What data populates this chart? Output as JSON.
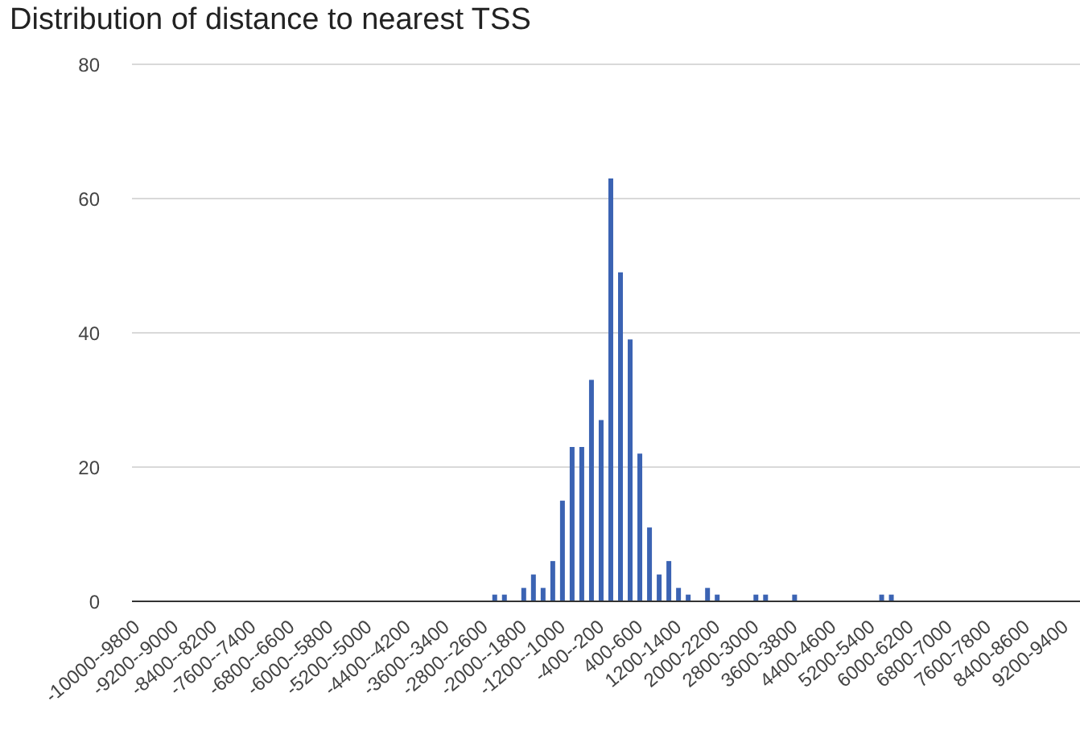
{
  "chart_data": {
    "type": "bar",
    "title": "Distribution of distance to nearest TSS",
    "categories": [
      "-10000--9800",
      null,
      null,
      null,
      "-9200--9000",
      null,
      null,
      null,
      "-8400--8200",
      null,
      null,
      null,
      "-7600--7400",
      null,
      null,
      null,
      "-6800--6600",
      null,
      null,
      null,
      "-6000--5800",
      null,
      null,
      null,
      "-5200--5000",
      null,
      null,
      null,
      "-4400--4200",
      null,
      null,
      null,
      "-3600--3400",
      null,
      null,
      null,
      "-2800--2600",
      null,
      null,
      null,
      "-2000--1800",
      null,
      null,
      null,
      "-1200--1000",
      null,
      null,
      null,
      "-400--200",
      null,
      null,
      null,
      "400-600",
      null,
      null,
      null,
      "1200-1400",
      null,
      null,
      null,
      "2000-2200",
      null,
      null,
      null,
      "2800-3000",
      null,
      null,
      null,
      "3600-3800",
      null,
      null,
      null,
      "4400-4600",
      null,
      null,
      null,
      "5200-5400",
      null,
      null,
      null,
      "6000-6200",
      null,
      null,
      null,
      "6800-7000",
      null,
      null,
      null,
      "7600-7800",
      null,
      null,
      null,
      "8400-8600",
      null,
      null,
      null,
      "9200-9400",
      null,
      null,
      null
    ],
    "values": [
      0,
      0,
      0,
      0,
      0,
      0,
      0,
      0,
      0,
      0,
      0,
      0,
      0,
      0,
      0,
      0,
      0,
      0,
      0,
      0,
      0,
      0,
      0,
      0,
      0,
      0,
      0,
      0,
      0,
      0,
      0,
      0,
      0,
      0,
      0,
      0,
      0,
      1,
      1,
      0,
      2,
      4,
      2,
      6,
      15,
      23,
      23,
      33,
      27,
      63,
      49,
      39,
      22,
      11,
      4,
      6,
      2,
      1,
      0,
      2,
      1,
      0,
      0,
      0,
      1,
      1,
      0,
      0,
      1,
      0,
      0,
      0,
      0,
      0,
      0,
      0,
      0,
      1,
      1,
      0,
      0,
      0,
      0,
      0,
      0,
      0,
      0,
      0,
      0,
      0,
      0,
      0,
      0,
      0,
      0,
      0,
      0,
      0,
      0,
      0
    ],
    "color": "#3b63b3",
    "ylim": [
      0,
      80
    ],
    "yticks": [
      0,
      20,
      40,
      60,
      80
    ],
    "grid": "y"
  }
}
